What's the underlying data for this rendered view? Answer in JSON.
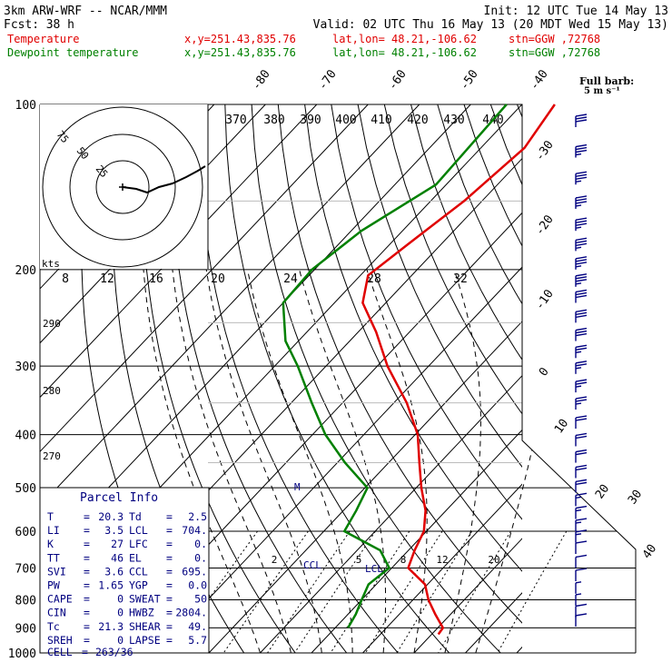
{
  "header": {
    "model": "3km ARW-WRF -- NCAR/MMM",
    "init": "Init: 12 UTC Tue 14 May 13",
    "fcst_label": "Fcst:",
    "fcst_value": "38 h",
    "valid": "Valid: 02 UTC Thu 16 May 13 (20 MDT Wed 15 May 13)",
    "temp_line": {
      "name": "Temperature",
      "xy": "x,y=251.43,835.76",
      "latlon": "lat,lon= 48.21,-106.62",
      "stn": "stn=GGW ,72768"
    },
    "dew_line": {
      "name": "Dewpoint temperature",
      "xy": "x,y=251.43,835.76",
      "latlon": "lat,lon= 48.21,-106.62",
      "stn": "stn=GGW ,72768"
    }
  },
  "colors": {
    "temperature": "#e00000",
    "dewpoint": "#008000",
    "parcel_text": "#000080"
  },
  "chart_data": {
    "type": "line",
    "pressure_levels": [
      "100",
      "200",
      "300",
      "400",
      "500",
      "600",
      "700",
      "800",
      "900",
      "1000"
    ],
    "isotherm_labels": [
      "-80",
      "-70",
      "-60",
      "-50",
      "-40",
      "-30",
      "-20",
      "-10",
      "0",
      "10",
      "20",
      "30",
      "40"
    ],
    "theta_labels": [
      "370",
      "380",
      "390",
      "400",
      "410",
      "420",
      "430",
      "440"
    ],
    "theta_left_labels": [
      "290",
      "280",
      "270"
    ],
    "mixing_ratio_labels": [
      "2",
      "5",
      "8",
      "12",
      "20"
    ],
    "hodo_rings": [
      "75",
      "50",
      "25"
    ],
    "hodo_units": "kts",
    "hodo_axis_labels": [
      "8",
      "12",
      "16",
      "20",
      "24",
      "28",
      "32"
    ],
    "full_barb_label": "Full barb:",
    "full_barb_value": "5 m s⁻¹",
    "lcl_label": "LCL",
    "ccl_label": "CCL",
    "m_label": "M",
    "series": [
      {
        "name": "Temperature",
        "points": [
          [
            100,
            -53.6
          ],
          [
            120,
            -51.5
          ],
          [
            150,
            -53.5
          ],
          [
            180,
            -56.5
          ],
          [
            205,
            -58.5
          ],
          [
            230,
            -54.5
          ],
          [
            260,
            -46.5
          ],
          [
            300,
            -38.0
          ],
          [
            350,
            -27.5
          ],
          [
            400,
            -19.5
          ],
          [
            450,
            -14.0
          ],
          [
            500,
            -9.0
          ],
          [
            550,
            -4.0
          ],
          [
            600,
            -0.5
          ],
          [
            650,
            1.2
          ],
          [
            700,
            3.2
          ],
          [
            750,
            9.5
          ],
          [
            800,
            13.0
          ],
          [
            850,
            17.0
          ],
          [
            900,
            21.0
          ],
          [
            925,
            21.3
          ]
        ]
      },
      {
        "name": "Dewpoint temperature",
        "points": [
          [
            100,
            -63.0
          ],
          [
            140,
            -62.0
          ],
          [
            170,
            -68.0
          ],
          [
            200,
            -70.5
          ],
          [
            230,
            -70.0
          ],
          [
            270,
            -62.5
          ],
          [
            300,
            -55.5
          ],
          [
            350,
            -46.0
          ],
          [
            400,
            -37.5
          ],
          [
            450,
            -28.5
          ],
          [
            500,
            -19.5
          ],
          [
            550,
            -17.5
          ],
          [
            600,
            -16.0
          ],
          [
            650,
            -5.5
          ],
          [
            700,
            -0.5
          ],
          [
            750,
            -1.5
          ],
          [
            800,
            0.0
          ],
          [
            850,
            1.5
          ],
          [
            900,
            2.5
          ]
        ]
      }
    ],
    "wind_barbs_ms": [
      {
        "p": 110,
        "spd": 32
      },
      {
        "p": 125,
        "spd": 33
      },
      {
        "p": 140,
        "spd": 34
      },
      {
        "p": 155,
        "spd": 35
      },
      {
        "p": 170,
        "spd": 36
      },
      {
        "p": 185,
        "spd": 35
      },
      {
        "p": 200,
        "spd": 34
      },
      {
        "p": 215,
        "spd": 33
      },
      {
        "p": 230,
        "spd": 32
      },
      {
        "p": 250,
        "spd": 30
      },
      {
        "p": 270,
        "spd": 28
      },
      {
        "p": 290,
        "spd": 27
      },
      {
        "p": 310,
        "spd": 26
      },
      {
        "p": 335,
        "spd": 25
      },
      {
        "p": 360,
        "spd": 23
      },
      {
        "p": 390,
        "spd": 22
      },
      {
        "p": 420,
        "spd": 21
      },
      {
        "p": 450,
        "spd": 20
      },
      {
        "p": 480,
        "spd": 19
      },
      {
        "p": 510,
        "spd": 18
      },
      {
        "p": 540,
        "spd": 17
      },
      {
        "p": 570,
        "spd": 16
      },
      {
        "p": 600,
        "spd": 15
      },
      {
        "p": 630,
        "spd": 14
      },
      {
        "p": 660,
        "spd": 12
      },
      {
        "p": 700,
        "spd": 10
      },
      {
        "p": 740,
        "spd": 8
      },
      {
        "p": 780,
        "spd": 6
      },
      {
        "p": 820,
        "spd": 7
      },
      {
        "p": 860,
        "spd": 9
      },
      {
        "p": 895,
        "spd": 12
      }
    ]
  },
  "parcel_info": {
    "title": "Parcel Info",
    "rows": [
      [
        {
          "k": "T",
          "v": "20.3"
        },
        {
          "k": "Td",
          "v": "2.5"
        }
      ],
      [
        {
          "k": "LI",
          "v": "3.5"
        },
        {
          "k": "LCL",
          "v": "704."
        }
      ],
      [
        {
          "k": "K",
          "v": "27"
        },
        {
          "k": "LFC",
          "v": "0."
        }
      ],
      [
        {
          "k": "TT",
          "v": "46"
        },
        {
          "k": "EL",
          "v": "0."
        }
      ],
      [
        {
          "k": "SVI",
          "v": "3.6"
        },
        {
          "k": "CCL",
          "v": "695."
        }
      ],
      [
        {
          "k": "PW",
          "v": "1.65"
        },
        {
          "k": "YGP",
          "v": "0.0"
        }
      ],
      [
        {
          "k": "CAPE",
          "v": "0"
        },
        {
          "k": "SWEAT",
          "v": "50"
        }
      ],
      [
        {
          "k": "CIN",
          "v": "0"
        },
        {
          "k": "HWBZ",
          "v": "2804."
        }
      ],
      [
        {
          "k": "Tc",
          "v": "21.3"
        },
        {
          "k": "SHEAR",
          "v": "49."
        }
      ],
      [
        {
          "k": "SREH",
          "v": "0"
        },
        {
          "k": "LAPSE",
          "v": "5.7"
        }
      ]
    ],
    "cell_label": "CELL",
    "cell_value": "263/36"
  }
}
